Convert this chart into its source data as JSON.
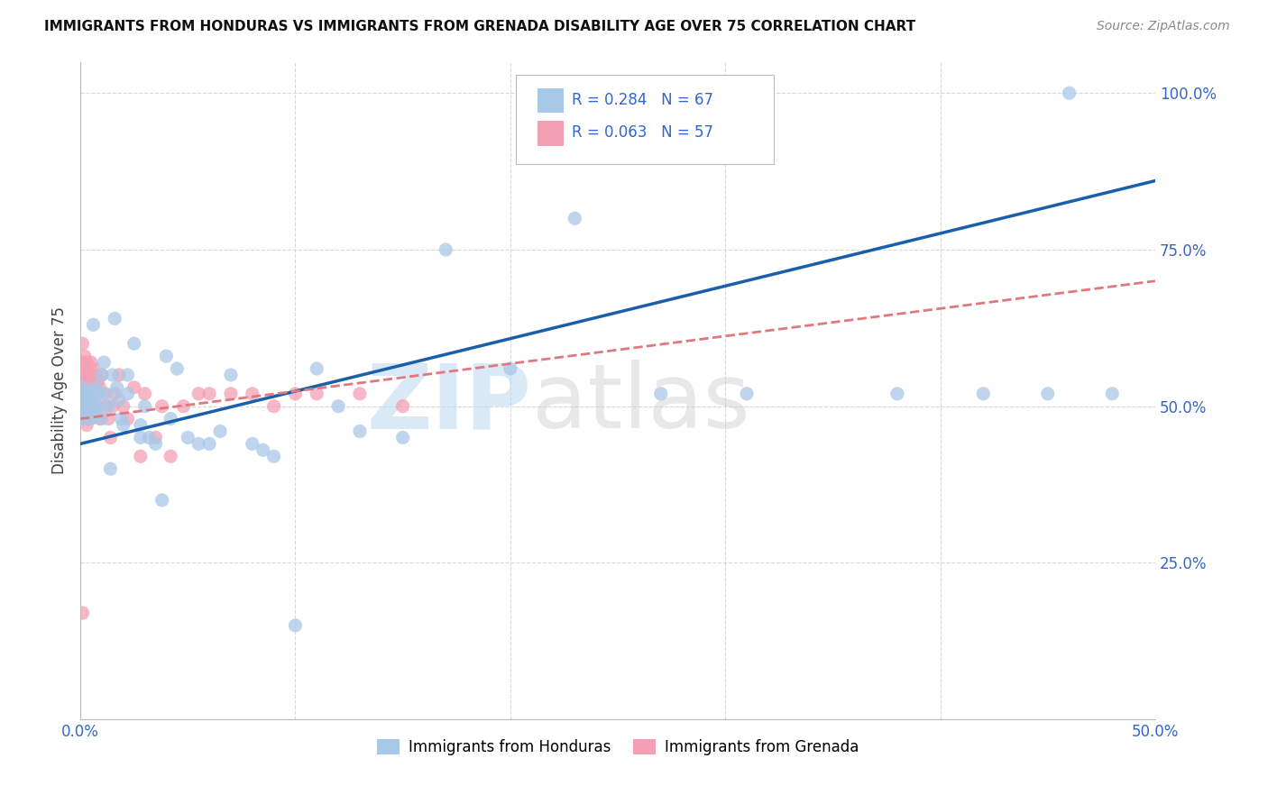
{
  "title": "IMMIGRANTS FROM HONDURAS VS IMMIGRANTS FROM GRENADA DISABILITY AGE OVER 75 CORRELATION CHART",
  "source": "Source: ZipAtlas.com",
  "ylabel": "Disability Age Over 75",
  "xlim": [
    0.0,
    0.5
  ],
  "ylim": [
    0.0,
    1.05
  ],
  "xticks": [
    0.0,
    0.1,
    0.2,
    0.3,
    0.4,
    0.5
  ],
  "xticklabels": [
    "0.0%",
    "",
    "",
    "",
    "",
    "50.0%"
  ],
  "yticks_right": [
    0.0,
    0.25,
    0.5,
    0.75,
    1.0
  ],
  "yticklabels_right": [
    "",
    "25.0%",
    "50.0%",
    "75.0%",
    "100.0%"
  ],
  "legend_labels": [
    "Immigrants from Honduras",
    "Immigrants from Grenada"
  ],
  "honduras_color": "#a8c8e8",
  "grenada_color": "#f4a0b4",
  "honduras_line_color": "#1a5faa",
  "grenada_line_color": "#e07880",
  "watermark_zip": "ZIP",
  "watermark_atlas": "atlas",
  "background_color": "#ffffff",
  "grid_color": "#d8d8d8",
  "honduras_x": [
    0.001,
    0.001,
    0.001,
    0.002,
    0.002,
    0.002,
    0.003,
    0.003,
    0.003,
    0.004,
    0.004,
    0.005,
    0.005,
    0.005,
    0.006,
    0.006,
    0.007,
    0.007,
    0.008,
    0.009,
    0.01,
    0.01,
    0.011,
    0.012,
    0.013,
    0.014,
    0.015,
    0.016,
    0.017,
    0.018,
    0.019,
    0.02,
    0.022,
    0.022,
    0.025,
    0.028,
    0.028,
    0.03,
    0.032,
    0.035,
    0.038,
    0.04,
    0.042,
    0.045,
    0.05,
    0.055,
    0.06,
    0.065,
    0.07,
    0.08,
    0.085,
    0.09,
    0.1,
    0.11,
    0.12,
    0.13,
    0.15,
    0.17,
    0.2,
    0.23,
    0.27,
    0.31,
    0.38,
    0.42,
    0.45,
    0.46,
    0.48
  ],
  "honduras_y": [
    0.5,
    0.53,
    0.48,
    0.51,
    0.49,
    0.52,
    0.52,
    0.5,
    0.48,
    0.51,
    0.49,
    0.5,
    0.52,
    0.48,
    0.63,
    0.51,
    0.53,
    0.49,
    0.52,
    0.5,
    0.55,
    0.48,
    0.57,
    0.52,
    0.5,
    0.4,
    0.55,
    0.64,
    0.53,
    0.51,
    0.48,
    0.47,
    0.55,
    0.52,
    0.6,
    0.47,
    0.45,
    0.5,
    0.45,
    0.44,
    0.35,
    0.58,
    0.48,
    0.56,
    0.45,
    0.44,
    0.44,
    0.46,
    0.55,
    0.44,
    0.43,
    0.42,
    0.15,
    0.56,
    0.5,
    0.46,
    0.45,
    0.75,
    0.56,
    0.8,
    0.52,
    0.52,
    0.52,
    0.52,
    0.52,
    1.0,
    0.52
  ],
  "grenada_x": [
    0.001,
    0.001,
    0.001,
    0.001,
    0.001,
    0.002,
    0.002,
    0.002,
    0.002,
    0.002,
    0.003,
    0.003,
    0.003,
    0.003,
    0.003,
    0.004,
    0.004,
    0.004,
    0.004,
    0.005,
    0.005,
    0.005,
    0.006,
    0.006,
    0.007,
    0.007,
    0.008,
    0.008,
    0.009,
    0.009,
    0.01,
    0.011,
    0.012,
    0.013,
    0.014,
    0.015,
    0.016,
    0.018,
    0.02,
    0.022,
    0.025,
    0.028,
    0.03,
    0.035,
    0.038,
    0.042,
    0.048,
    0.055,
    0.06,
    0.07,
    0.08,
    0.09,
    0.1,
    0.11,
    0.13,
    0.15,
    0.001
  ],
  "grenada_y": [
    0.57,
    0.55,
    0.6,
    0.52,
    0.5,
    0.56,
    0.54,
    0.52,
    0.58,
    0.48,
    0.57,
    0.55,
    0.53,
    0.5,
    0.47,
    0.55,
    0.52,
    0.5,
    0.48,
    0.57,
    0.54,
    0.52,
    0.56,
    0.5,
    0.55,
    0.52,
    0.54,
    0.5,
    0.53,
    0.48,
    0.55,
    0.52,
    0.5,
    0.48,
    0.45,
    0.5,
    0.52,
    0.55,
    0.5,
    0.48,
    0.53,
    0.42,
    0.52,
    0.45,
    0.5,
    0.42,
    0.5,
    0.52,
    0.52,
    0.52,
    0.52,
    0.5,
    0.52,
    0.52,
    0.52,
    0.5,
    0.17
  ],
  "honduras_line_x": [
    0.0,
    0.5
  ],
  "honduras_line_y": [
    0.44,
    0.86
  ],
  "grenada_line_x": [
    0.0,
    0.5
  ],
  "grenada_line_y": [
    0.48,
    0.7
  ]
}
